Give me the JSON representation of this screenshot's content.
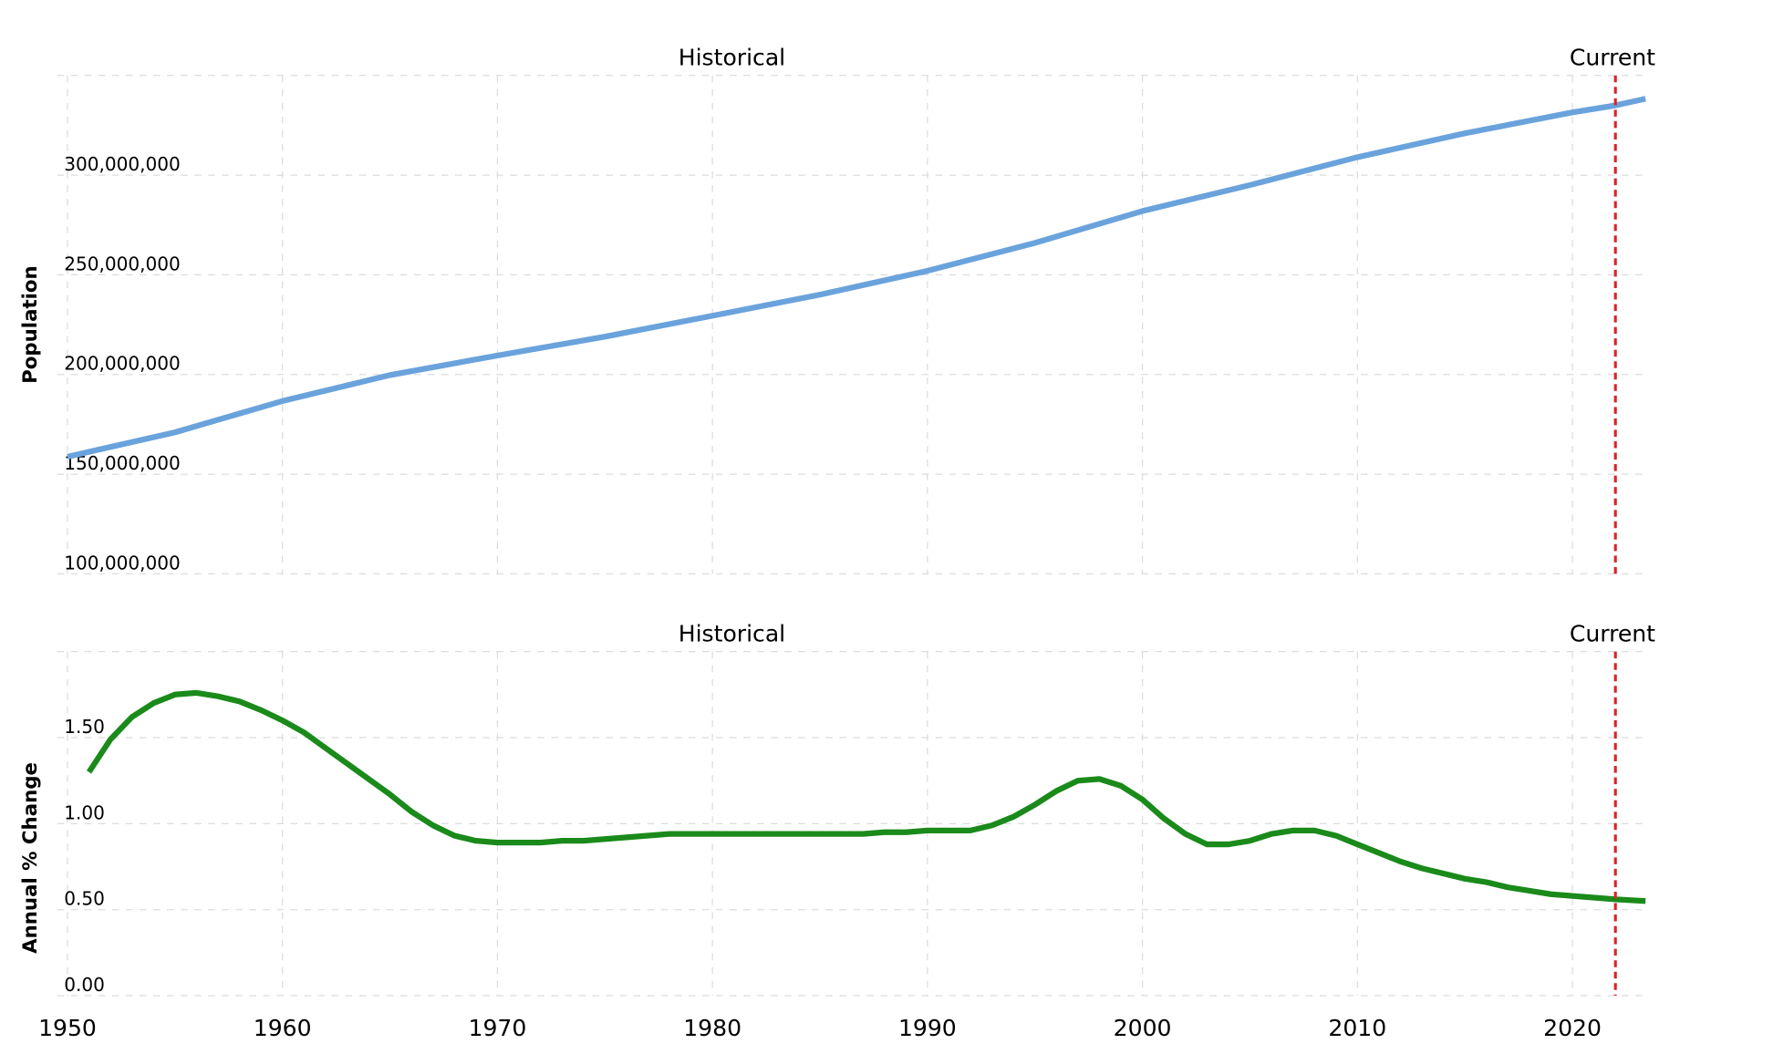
{
  "chart_data": [
    {
      "type": "line",
      "ylabel": "Population",
      "ylim": [
        100000000,
        350000000
      ],
      "yticks": [
        "100,000,000",
        "150,000,000",
        "200,000,000",
        "250,000,000",
        "300,000,000"
      ],
      "ytick_values": [
        100000000,
        150000000,
        200000000,
        250000000,
        300000000
      ],
      "xlim": [
        1950,
        2023.4
      ],
      "grid": true,
      "color": "#6aa3dc",
      "annotations": {
        "historical": "Historical",
        "current": "Current",
        "current_year": 2022,
        "current_color": "#d9232b"
      },
      "x": [
        1950,
        1955,
        1960,
        1965,
        1970,
        1975,
        1980,
        1985,
        1990,
        1995,
        2000,
        2005,
        2010,
        2015,
        2020,
        2022,
        2023.4
      ],
      "values": [
        158800000,
        171000000,
        186700000,
        199700000,
        209500000,
        219000000,
        229500000,
        240000000,
        252000000,
        266000000,
        282000000,
        295000000,
        309000000,
        321000000,
        331500000,
        335000000,
        338300000
      ]
    },
    {
      "type": "line",
      "ylabel": "Annual % Change",
      "ylim": [
        0,
        2.0
      ],
      "yticks": [
        "0.00",
        "0.50",
        "1.00",
        "1.50"
      ],
      "ytick_values": [
        0,
        0.5,
        1.0,
        1.5
      ],
      "xlim": [
        1950,
        2023.4
      ],
      "grid": true,
      "color": "#1a8a1a",
      "annotations": {
        "historical": "Historical",
        "current": "Current",
        "current_year": 2022,
        "current_color": "#d9232b"
      },
      "x": [
        1951,
        1952,
        1953,
        1954,
        1955,
        1956,
        1957,
        1958,
        1959,
        1960,
        1961,
        1962,
        1963,
        1964,
        1965,
        1966,
        1967,
        1968,
        1969,
        1970,
        1971,
        1972,
        1973,
        1974,
        1975,
        1976,
        1977,
        1978,
        1979,
        1980,
        1981,
        1982,
        1983,
        1984,
        1985,
        1986,
        1987,
        1988,
        1989,
        1990,
        1991,
        1992,
        1993,
        1994,
        1995,
        1996,
        1997,
        1998,
        1999,
        2000,
        2001,
        2002,
        2003,
        2004,
        2005,
        2006,
        2007,
        2008,
        2009,
        2010,
        2011,
        2012,
        2013,
        2014,
        2015,
        2016,
        2017,
        2018,
        2019,
        2020,
        2021,
        2022,
        2023.4
      ],
      "values": [
        1.3,
        1.49,
        1.62,
        1.7,
        1.75,
        1.76,
        1.74,
        1.71,
        1.66,
        1.6,
        1.53,
        1.44,
        1.35,
        1.26,
        1.17,
        1.07,
        0.99,
        0.93,
        0.9,
        0.89,
        0.89,
        0.89,
        0.9,
        0.9,
        0.91,
        0.92,
        0.93,
        0.94,
        0.94,
        0.94,
        0.94,
        0.94,
        0.94,
        0.94,
        0.94,
        0.94,
        0.94,
        0.95,
        0.95,
        0.96,
        0.96,
        0.96,
        0.99,
        1.04,
        1.11,
        1.19,
        1.25,
        1.26,
        1.22,
        1.14,
        1.03,
        0.94,
        0.88,
        0.88,
        0.9,
        0.94,
        0.96,
        0.96,
        0.93,
        0.88,
        0.83,
        0.78,
        0.74,
        0.71,
        0.68,
        0.66,
        0.63,
        0.61,
        0.59,
        0.58,
        0.57,
        0.56,
        0.55
      ]
    }
  ],
  "x_axis": {
    "ticks": [
      "1950",
      "1960",
      "1970",
      "1980",
      "1990",
      "2000",
      "2010",
      "2020"
    ],
    "tick_values": [
      1950,
      1960,
      1970,
      1980,
      1990,
      2000,
      2010,
      2020
    ]
  }
}
